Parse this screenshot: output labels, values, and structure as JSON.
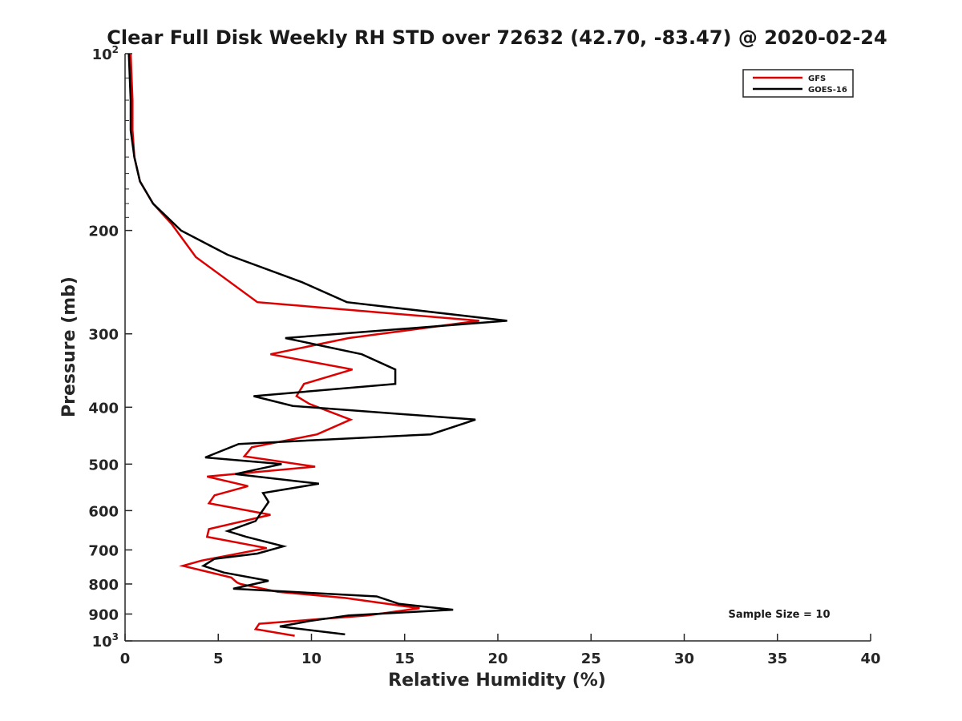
{
  "chart_data": {
    "type": "line",
    "title": "Clear Full Disk Weekly RH STD over 72632 (42.70, -83.47) @ 2020-02-24",
    "xlabel": "Relative Humidity (%)",
    "ylabel": "Pressure (mb)",
    "xlim": [
      0,
      40
    ],
    "ylim": [
      100,
      1000
    ],
    "y_scale": "log",
    "y_reversed": true,
    "x_ticks": [
      0,
      5,
      10,
      15,
      20,
      25,
      30,
      35,
      40
    ],
    "y_ticks": [
      {
        "value": 100,
        "base": "10",
        "exp": "2"
      },
      {
        "value": 200,
        "label": "200"
      },
      {
        "value": 300,
        "label": "300"
      },
      {
        "value": 400,
        "label": "400"
      },
      {
        "value": 500,
        "label": "500"
      },
      {
        "value": 600,
        "label": "600"
      },
      {
        "value": 700,
        "label": "700"
      },
      {
        "value": 800,
        "label": "800"
      },
      {
        "value": 900,
        "label": "900"
      },
      {
        "value": 1000,
        "base": "10",
        "exp": "3"
      }
    ],
    "grid": false,
    "legend_position": "top-right",
    "series": [
      {
        "name": "GFS",
        "color": "#dd0000",
        "points": [
          [
            0.3,
            100
          ],
          [
            0.4,
            120
          ],
          [
            0.4,
            135
          ],
          [
            0.5,
            150
          ],
          [
            0.8,
            165
          ],
          [
            1.5,
            180
          ],
          [
            2.5,
            195
          ],
          [
            3.8,
            222
          ],
          [
            7.1,
            265
          ],
          [
            19.0,
            285
          ],
          [
            12.0,
            305
          ],
          [
            7.8,
            325
          ],
          [
            12.2,
            345
          ],
          [
            9.6,
            365
          ],
          [
            9.2,
            383
          ],
          [
            9.9,
            395
          ],
          [
            12.1,
            420
          ],
          [
            10.3,
            445
          ],
          [
            6.8,
            468
          ],
          [
            6.4,
            485
          ],
          [
            10.2,
            505
          ],
          [
            4.4,
            525
          ],
          [
            6.6,
            545
          ],
          [
            4.8,
            565
          ],
          [
            4.5,
            583
          ],
          [
            7.8,
            610
          ],
          [
            4.5,
            645
          ],
          [
            4.4,
            665
          ],
          [
            7.6,
            695
          ],
          [
            4.1,
            730
          ],
          [
            3.1,
            745
          ],
          [
            5.7,
            780
          ],
          [
            6.0,
            795
          ],
          [
            6.2,
            800
          ],
          [
            8.2,
            825
          ],
          [
            11.8,
            845
          ],
          [
            15.8,
            880
          ],
          [
            13.0,
            905
          ],
          [
            7.2,
            935
          ],
          [
            7.0,
            955
          ],
          [
            9.1,
            980
          ]
        ]
      },
      {
        "name": "GOES-16",
        "color": "#000000",
        "points": [
          [
            0.2,
            100
          ],
          [
            0.3,
            120
          ],
          [
            0.3,
            135
          ],
          [
            0.5,
            150
          ],
          [
            0.8,
            165
          ],
          [
            1.5,
            180
          ],
          [
            3.0,
            200
          ],
          [
            5.5,
            220
          ],
          [
            9.5,
            245
          ],
          [
            11.9,
            265
          ],
          [
            20.5,
            285
          ],
          [
            8.6,
            305
          ],
          [
            12.7,
            325
          ],
          [
            14.5,
            345
          ],
          [
            14.5,
            365
          ],
          [
            6.9,
            383
          ],
          [
            9.0,
            398
          ],
          [
            18.8,
            420
          ],
          [
            16.4,
            445
          ],
          [
            6.1,
            462
          ],
          [
            4.3,
            487
          ],
          [
            8.4,
            500
          ],
          [
            5.9,
            520
          ],
          [
            10.4,
            540
          ],
          [
            7.4,
            560
          ],
          [
            7.7,
            580
          ],
          [
            7.3,
            605
          ],
          [
            7.0,
            625
          ],
          [
            5.5,
            650
          ],
          [
            6.5,
            665
          ],
          [
            8.5,
            690
          ],
          [
            7.1,
            710
          ],
          [
            4.8,
            725
          ],
          [
            4.2,
            745
          ],
          [
            5.3,
            765
          ],
          [
            7.7,
            790
          ],
          [
            5.8,
            815
          ],
          [
            13.5,
            840
          ],
          [
            14.7,
            865
          ],
          [
            17.6,
            885
          ],
          [
            12.0,
            905
          ],
          [
            9.9,
            925
          ],
          [
            8.3,
            945
          ],
          [
            11.8,
            975
          ]
        ]
      }
    ],
    "annotations": [
      "Sample Size = 10"
    ]
  }
}
